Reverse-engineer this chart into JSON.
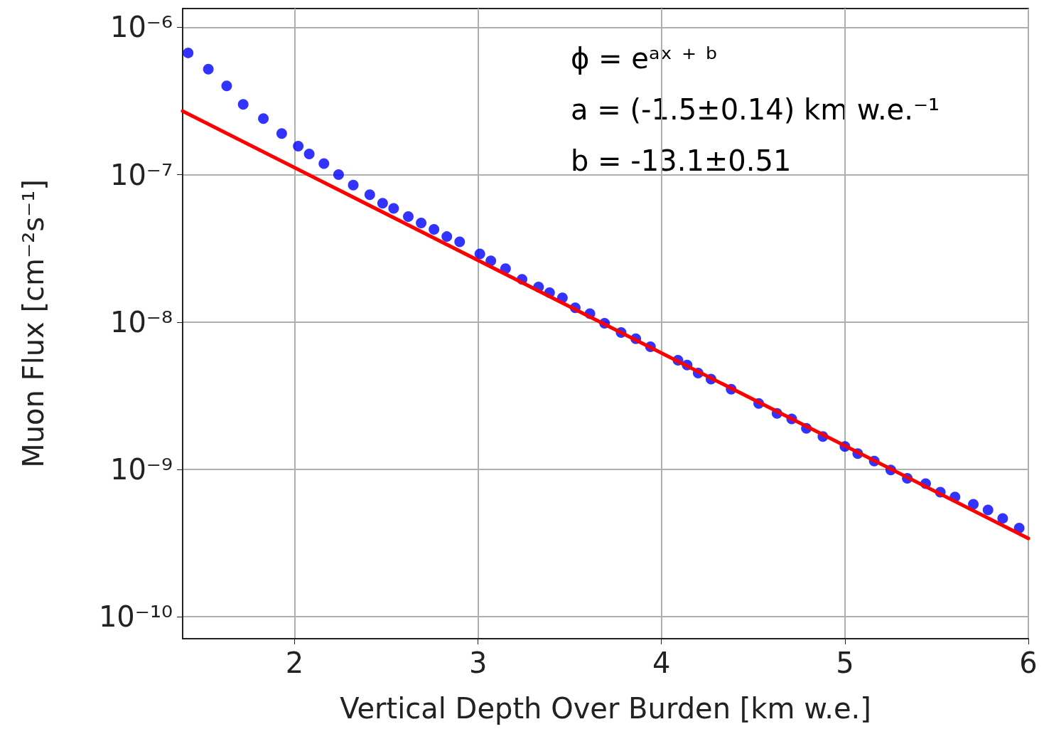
{
  "chart_data": {
    "type": "scatter",
    "xlabel": "Vertical Depth Over Burden [km w.e.]",
    "ylabel": "Muon Flux [cm⁻²s⁻¹]",
    "annotations": [
      "ϕ = eᵃˣ ⁺ ᵇ",
      "a = (-1.5±0.14) km w.e.⁻¹",
      "b = -13.1±0.51"
    ],
    "log": "y",
    "grid": true,
    "xlim": [
      1.39,
      6
    ],
    "xticks": [
      2,
      3,
      4,
      5,
      6
    ],
    "ylim": [
      7.1e-11,
      1.34e-06
    ],
    "yticks": [
      {
        "value": 1e-06,
        "label": "10⁻⁶"
      },
      {
        "value": 1e-07,
        "label": "10⁻⁷"
      },
      {
        "value": 1e-08,
        "label": "10⁻⁸"
      },
      {
        "value": 1e-09,
        "label": "10⁻⁹"
      },
      {
        "value": 1e-10,
        "label": "10⁻¹⁰"
      }
    ],
    "series": [
      {
        "color": "#0000ff",
        "marker": "circle",
        "x": [
          1.42,
          1.53,
          1.63,
          1.72,
          1.83,
          1.93,
          2.02,
          2.08,
          2.16,
          2.24,
          2.32,
          2.41,
          2.48,
          2.54,
          2.62,
          2.69,
          2.76,
          2.83,
          2.9,
          3.01,
          3.07,
          3.15,
          3.24,
          3.33,
          3.39,
          3.46,
          3.53,
          3.61,
          3.69,
          3.78,
          3.86,
          3.94,
          4.09,
          4.14,
          4.2,
          4.27,
          4.38,
          4.53,
          4.63,
          4.71,
          4.79,
          4.88,
          5.0,
          5.07,
          5.16,
          5.25,
          5.34,
          5.44,
          5.52,
          5.6,
          5.7,
          5.78,
          5.86,
          5.95
        ],
        "values": [
          6.7e-07,
          5.2e-07,
          4e-07,
          3e-07,
          2.4e-07,
          1.9e-07,
          1.56e-07,
          1.38e-07,
          1.19e-07,
          1e-07,
          8.5e-08,
          7.3e-08,
          6.4e-08,
          5.9e-08,
          5.2e-08,
          4.7e-08,
          4.25e-08,
          3.8e-08,
          3.5e-08,
          2.9e-08,
          2.6e-08,
          2.3e-08,
          1.95e-08,
          1.73e-08,
          1.58e-08,
          1.46e-08,
          1.25e-08,
          1.14e-08,
          9.8e-09,
          8.5e-09,
          7.7e-09,
          6.8e-09,
          5.5e-09,
          5.1e-09,
          4.5e-09,
          4.1e-09,
          3.5e-09,
          2.8e-09,
          2.4e-09,
          2.2e-09,
          1.9e-09,
          1.67e-09,
          1.43e-09,
          1.28e-09,
          1.14e-09,
          9.9e-10,
          8.7e-10,
          8e-10,
          7e-10,
          6.5e-10,
          5.8e-10,
          5.3e-10,
          4.65e-10,
          4e-10
        ]
      },
      {
        "type": "line",
        "marker": "none",
        "color": "#ff0000",
        "x": [
          1.39,
          6
        ],
        "values": [
          2.7e-07,
          3.4e-10
        ]
      }
    ]
  }
}
